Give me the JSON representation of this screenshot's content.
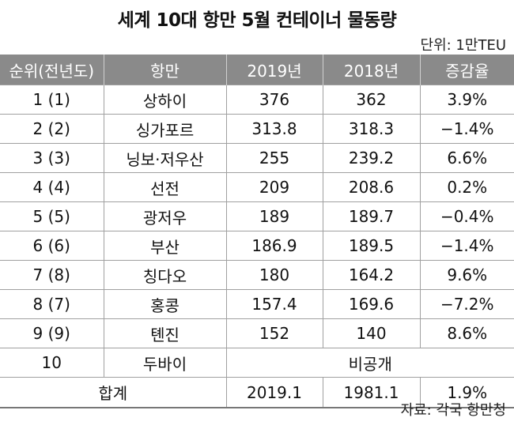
{
  "title": "세계 10대 항만 5월 컨테이너 물동량",
  "unit": "단위: 1만TEU",
  "headers": [
    "순위(전년도)",
    "항만",
    "2019년",
    "2018년",
    "증감율"
  ],
  "rows": [
    [
      "1 (1)",
      "상하이",
      "376",
      "362",
      "3.9%"
    ],
    [
      "2 (2)",
      "싱가포르",
      "313.8",
      "318.3",
      "−1.4%"
    ],
    [
      "3 (3)",
      "닝보·저우산",
      "255",
      "239.2",
      "6.6%"
    ],
    [
      "4 (4)",
      "선전",
      "209",
      "208.6",
      "0.2%"
    ],
    [
      "5 (5)",
      "광저우",
      "189",
      "189.7",
      "−0.4%"
    ],
    [
      "6 (6)",
      "부산",
      "186.9",
      "189.5",
      "−1.4%"
    ],
    [
      "7 (8)",
      "칭다오",
      "180",
      "164.2",
      "9.6%"
    ],
    [
      "8 (7)",
      "홍콩",
      "157.4",
      "169.6",
      "−7.2%"
    ],
    [
      "9 (9)",
      "톈진",
      "152",
      "140",
      "8.6%"
    ]
  ],
  "row10": {
    "rank": "10",
    "port": "두바이",
    "note": "비공개"
  },
  "total": {
    "label": "합계",
    "y2019": "2019.1",
    "y2018": "1981.1",
    "rate": "1.9%"
  },
  "source": "자료: 각국 항만청"
}
